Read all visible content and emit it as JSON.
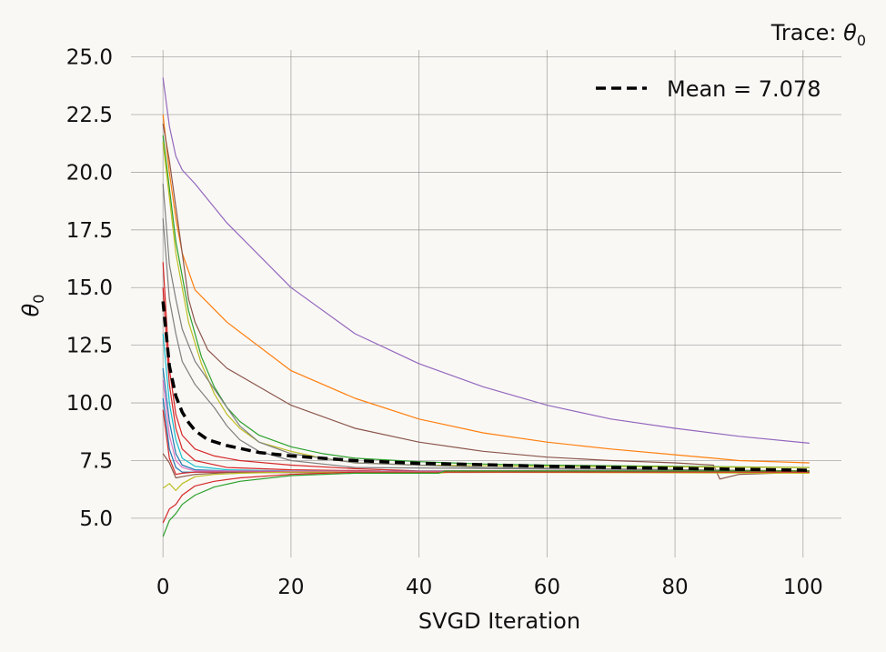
{
  "chart_data": {
    "type": "line",
    "title": "Trace: θ₀",
    "title_parts": {
      "text": "Trace: ",
      "symbol": "θ",
      "subscript": "0"
    },
    "xlabel": "SVGD Iteration",
    "ylabel": "θ₀",
    "ylabel_parts": {
      "symbol": "θ",
      "subscript": "0"
    },
    "xlim": [
      -5,
      106
    ],
    "ylim": [
      3.3,
      25.3
    ],
    "xticks": [
      0,
      20,
      40,
      60,
      80,
      100
    ],
    "xtick_labels": [
      "0",
      "20",
      "40",
      "60",
      "80",
      "100"
    ],
    "yticks": [
      5.0,
      7.5,
      10.0,
      12.5,
      15.0,
      17.5,
      20.0,
      22.5,
      25.0
    ],
    "ytick_labels": [
      "5.0",
      "7.5",
      "10.0",
      "12.5",
      "15.0",
      "17.5",
      "20.0",
      "22.5",
      "25.0"
    ],
    "grid": true,
    "legend_position": "top-right",
    "mean": {
      "name": "Mean = 7.078",
      "color": "#000000",
      "style": "dashed",
      "points": [
        [
          0,
          14.4
        ],
        [
          1,
          11.6
        ],
        [
          2,
          10.3
        ],
        [
          3,
          9.6
        ],
        [
          4,
          9.15
        ],
        [
          5,
          8.8
        ],
        [
          7,
          8.4
        ],
        [
          10,
          8.15
        ],
        [
          15,
          7.85
        ],
        [
          20,
          7.7
        ],
        [
          30,
          7.5
        ],
        [
          40,
          7.38
        ],
        [
          50,
          7.32
        ],
        [
          60,
          7.25
        ],
        [
          70,
          7.2
        ],
        [
          80,
          7.16
        ],
        [
          90,
          7.12
        ],
        [
          101,
          7.08
        ]
      ]
    },
    "series": [
      {
        "color": "#9467bd",
        "points": [
          [
            0,
            24.1
          ],
          [
            1,
            22.0
          ],
          [
            2,
            20.7
          ],
          [
            3,
            20.1
          ],
          [
            5,
            19.5
          ],
          [
            10,
            17.8
          ],
          [
            20,
            15.0
          ],
          [
            30,
            13.0
          ],
          [
            40,
            11.7
          ],
          [
            50,
            10.7
          ],
          [
            60,
            9.9
          ],
          [
            70,
            9.3
          ],
          [
            80,
            8.9
          ],
          [
            90,
            8.55
          ],
          [
            101,
            8.25
          ]
        ]
      },
      {
        "color": "#ff7f0e",
        "points": [
          [
            0,
            22.5
          ],
          [
            1,
            20.0
          ],
          [
            2,
            18.0
          ],
          [
            3,
            16.5
          ],
          [
            5,
            14.9
          ],
          [
            10,
            13.5
          ],
          [
            20,
            11.4
          ],
          [
            30,
            10.2
          ],
          [
            40,
            9.3
          ],
          [
            50,
            8.7
          ],
          [
            60,
            8.3
          ],
          [
            70,
            8.0
          ],
          [
            80,
            7.75
          ],
          [
            86,
            7.6
          ],
          [
            90,
            7.5
          ],
          [
            101,
            7.4
          ]
        ]
      },
      {
        "color": "#8c564b",
        "points": [
          [
            0,
            22.1
          ],
          [
            1,
            20.5
          ],
          [
            2,
            18.5
          ],
          [
            3,
            16.5
          ],
          [
            4,
            14.5
          ],
          [
            5,
            13.5
          ],
          [
            7,
            12.3
          ],
          [
            10,
            11.5
          ],
          [
            20,
            9.9
          ],
          [
            30,
            8.9
          ],
          [
            40,
            8.3
          ],
          [
            50,
            7.9
          ],
          [
            60,
            7.65
          ],
          [
            70,
            7.5
          ],
          [
            80,
            7.4
          ],
          [
            86,
            7.3
          ],
          [
            87,
            6.7
          ],
          [
            90,
            6.9
          ],
          [
            101,
            7.0
          ]
        ]
      },
      {
        "color": "#2ca02c",
        "points": [
          [
            0,
            21.6
          ],
          [
            2,
            17.0
          ],
          [
            4,
            14.0
          ],
          [
            6,
            12.0
          ],
          [
            8,
            10.7
          ],
          [
            10,
            9.8
          ],
          [
            12,
            9.2
          ],
          [
            15,
            8.6
          ],
          [
            20,
            8.1
          ],
          [
            25,
            7.8
          ],
          [
            30,
            7.6
          ],
          [
            40,
            7.45
          ],
          [
            50,
            7.35
          ],
          [
            60,
            7.3
          ],
          [
            80,
            7.25
          ],
          [
            101,
            7.2
          ]
        ]
      },
      {
        "color": "#bcbd22",
        "points": [
          [
            0,
            21.3
          ],
          [
            2,
            16.5
          ],
          [
            4,
            13.5
          ],
          [
            6,
            11.7
          ],
          [
            8,
            10.4
          ],
          [
            10,
            9.5
          ],
          [
            12,
            8.9
          ],
          [
            15,
            8.3
          ],
          [
            20,
            7.9
          ],
          [
            25,
            7.6
          ],
          [
            30,
            7.4
          ],
          [
            40,
            7.3
          ],
          [
            60,
            7.25
          ],
          [
            101,
            7.2
          ]
        ]
      },
      {
        "color": "#7f7f7f",
        "points": [
          [
            0,
            19.5
          ],
          [
            1,
            16.0
          ],
          [
            2,
            14.5
          ],
          [
            3,
            13.2
          ],
          [
            5,
            11.8
          ],
          [
            8,
            10.6
          ],
          [
            10,
            9.8
          ],
          [
            12,
            9.0
          ],
          [
            15,
            8.3
          ],
          [
            20,
            7.8
          ],
          [
            30,
            7.4
          ],
          [
            50,
            7.2
          ],
          [
            101,
            7.05
          ]
        ]
      },
      {
        "color": "#7f7f7f",
        "points": [
          [
            0,
            18.0
          ],
          [
            1,
            14.5
          ],
          [
            2,
            13.0
          ],
          [
            3,
            11.8
          ],
          [
            5,
            10.8
          ],
          [
            8,
            9.8
          ],
          [
            10,
            9.0
          ],
          [
            12,
            8.4
          ],
          [
            15,
            7.9
          ],
          [
            20,
            7.5
          ],
          [
            30,
            7.2
          ],
          [
            101,
            7.05
          ]
        ]
      },
      {
        "color": "#d62728",
        "points": [
          [
            0,
            16.1
          ],
          [
            1,
            11.5
          ],
          [
            2,
            9.5
          ],
          [
            3,
            8.6
          ],
          [
            5,
            8.0
          ],
          [
            8,
            7.7
          ],
          [
            12,
            7.5
          ],
          [
            20,
            7.3
          ],
          [
            30,
            7.15
          ],
          [
            40,
            7.05
          ],
          [
            60,
            7.05
          ],
          [
            101,
            7.05
          ]
        ]
      },
      {
        "color": "#d62728",
        "points": [
          [
            0,
            15.0
          ],
          [
            1,
            10.8
          ],
          [
            2,
            8.9
          ],
          [
            3,
            8.0
          ],
          [
            5,
            7.5
          ],
          [
            10,
            7.2
          ],
          [
            20,
            7.1
          ],
          [
            34,
            7.05
          ],
          [
            35,
            6.95
          ],
          [
            40,
            7.0
          ],
          [
            101,
            7.0
          ]
        ]
      },
      {
        "color": "#17becf",
        "points": [
          [
            0,
            13.0
          ],
          [
            1,
            10.0
          ],
          [
            2,
            8.4
          ],
          [
            3,
            7.6
          ],
          [
            5,
            7.25
          ],
          [
            10,
            7.1
          ],
          [
            20,
            7.05
          ],
          [
            101,
            7.0
          ]
        ]
      },
      {
        "color": "#1f77b4",
        "points": [
          [
            0,
            11.5
          ],
          [
            1,
            9.2
          ],
          [
            2,
            7.8
          ],
          [
            3,
            7.3
          ],
          [
            5,
            7.1
          ],
          [
            10,
            7.05
          ],
          [
            101,
            7.02
          ]
        ]
      },
      {
        "color": "#e377c2",
        "points": [
          [
            0,
            11.0
          ],
          [
            1,
            8.6
          ],
          [
            2,
            7.5
          ],
          [
            3,
            7.2
          ],
          [
            5,
            7.05
          ],
          [
            101,
            7.0
          ]
        ]
      },
      {
        "color": "#1f77b4",
        "points": [
          [
            0,
            10.2
          ],
          [
            1,
            8.0
          ],
          [
            2,
            7.2
          ],
          [
            3,
            7.0
          ],
          [
            5,
            7.0
          ],
          [
            101,
            7.0
          ]
        ]
      },
      {
        "color": "#d62728",
        "points": [
          [
            0,
            9.7
          ],
          [
            1,
            7.6
          ],
          [
            2,
            6.9
          ],
          [
            3,
            6.95
          ],
          [
            5,
            7.0
          ],
          [
            101,
            7.0
          ]
        ]
      },
      {
        "color": "#8c564b",
        "points": [
          [
            0,
            7.8
          ],
          [
            1,
            7.4
          ],
          [
            2,
            6.75
          ],
          [
            3,
            6.8
          ],
          [
            5,
            6.9
          ],
          [
            10,
            6.98
          ],
          [
            101,
            7.0
          ]
        ]
      },
      {
        "color": "#bcbd22",
        "points": [
          [
            0,
            6.3
          ],
          [
            1,
            6.5
          ],
          [
            2,
            6.2
          ],
          [
            3,
            6.5
          ],
          [
            5,
            6.8
          ],
          [
            8,
            6.9
          ],
          [
            12,
            6.95
          ],
          [
            20,
            7.0
          ],
          [
            42,
            7.0
          ],
          [
            43,
            6.95
          ],
          [
            45,
            7.0
          ],
          [
            101,
            6.95
          ]
        ]
      },
      {
        "color": "#d62728",
        "points": [
          [
            0,
            4.8
          ],
          [
            1,
            5.4
          ],
          [
            2,
            5.6
          ],
          [
            3,
            6.0
          ],
          [
            5,
            6.4
          ],
          [
            8,
            6.6
          ],
          [
            12,
            6.75
          ],
          [
            20,
            6.9
          ],
          [
            30,
            7.0
          ],
          [
            101,
            7.0
          ]
        ]
      },
      {
        "color": "#2ca02c",
        "points": [
          [
            0,
            4.2
          ],
          [
            1,
            4.9
          ],
          [
            2,
            5.2
          ],
          [
            3,
            5.6
          ],
          [
            5,
            6.0
          ],
          [
            8,
            6.35
          ],
          [
            12,
            6.6
          ],
          [
            20,
            6.85
          ],
          [
            30,
            6.95
          ],
          [
            43,
            6.95
          ],
          [
            44,
            7.05
          ],
          [
            101,
            7.05
          ]
        ]
      }
    ]
  }
}
